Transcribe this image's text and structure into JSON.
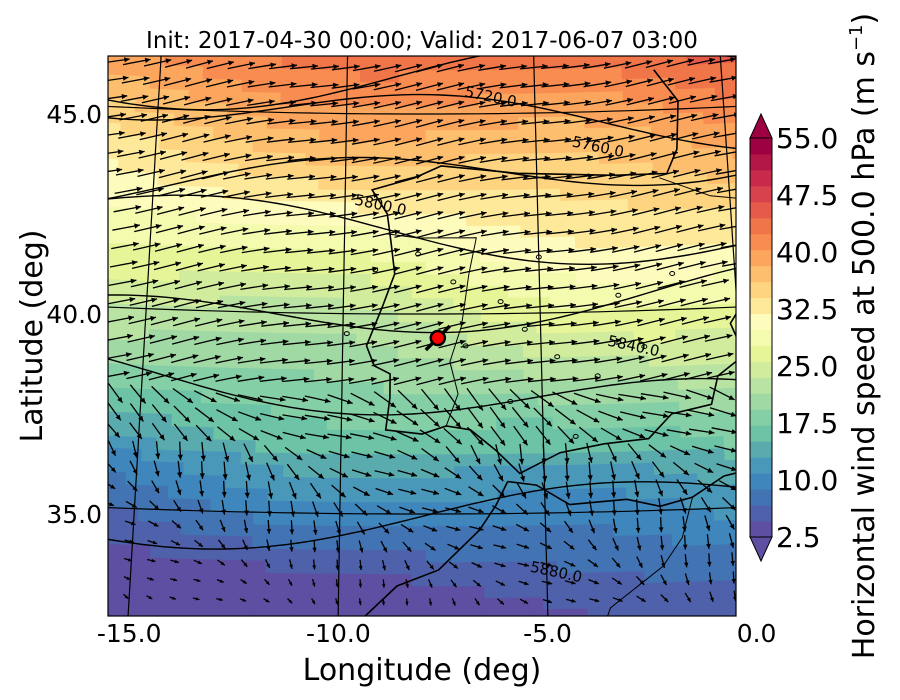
{
  "chart_data": {
    "type": "contour-map",
    "title": "Init: 2017-04-30 00:00; Valid: 2017-06-07 03:00",
    "xlabel": "Longitude (deg)",
    "ylabel": "Latitude (deg)",
    "xlim": [
      -16.0,
      0.3
    ],
    "ylim": [
      32.7,
      46.0
    ],
    "x_ticks": [
      "-15.0",
      "-10.0",
      "-5.0",
      "0.0"
    ],
    "y_ticks": [
      "45.0",
      "40.0",
      "35.0"
    ],
    "colorbar": {
      "label": "Horizontal wind speed at 500.0 hPa (m s",
      "label_superscript": "−1",
      "label_close": ")",
      "min": 2.5,
      "max": 55.0,
      "step": 2.5,
      "tick_labels": [
        "55.0",
        "47.5",
        "40.0",
        "32.5",
        "25.0",
        "17.5",
        "10.0",
        "2.5"
      ],
      "colors": [
        "#5e4fa2",
        "#4f61aa",
        "#4273b3",
        "#3f86bc",
        "#4a98b9",
        "#5aabae",
        "#6cc3a5",
        "#84cfa5",
        "#a0d9a4",
        "#b8e3a2",
        "#d0ec9c",
        "#e6f597",
        "#f4faae",
        "#fefcbc",
        "#fee99a",
        "#fed480",
        "#fdbe6e",
        "#fca55d",
        "#f88c51",
        "#f07549",
        "#e55a49",
        "#d8424d",
        "#c72a4b",
        "#b31747",
        "#9e0142"
      ]
    },
    "height_contours": [
      {
        "label": "5720.0",
        "lon": -6.2,
        "lat": 45.3
      },
      {
        "label": "5760.0",
        "lon": -3.4,
        "lat": 44.0
      },
      {
        "label": "5800.0",
        "lon": -9.1,
        "lat": 42.6
      },
      {
        "label": "5840.0",
        "lon": -2.7,
        "lat": 39.0
      },
      {
        "label": "5880.0",
        "lon": -4.8,
        "lat": 33.4
      }
    ],
    "marker": {
      "lon": -7.6,
      "lat": 39.4,
      "color": "#ff0000"
    }
  }
}
